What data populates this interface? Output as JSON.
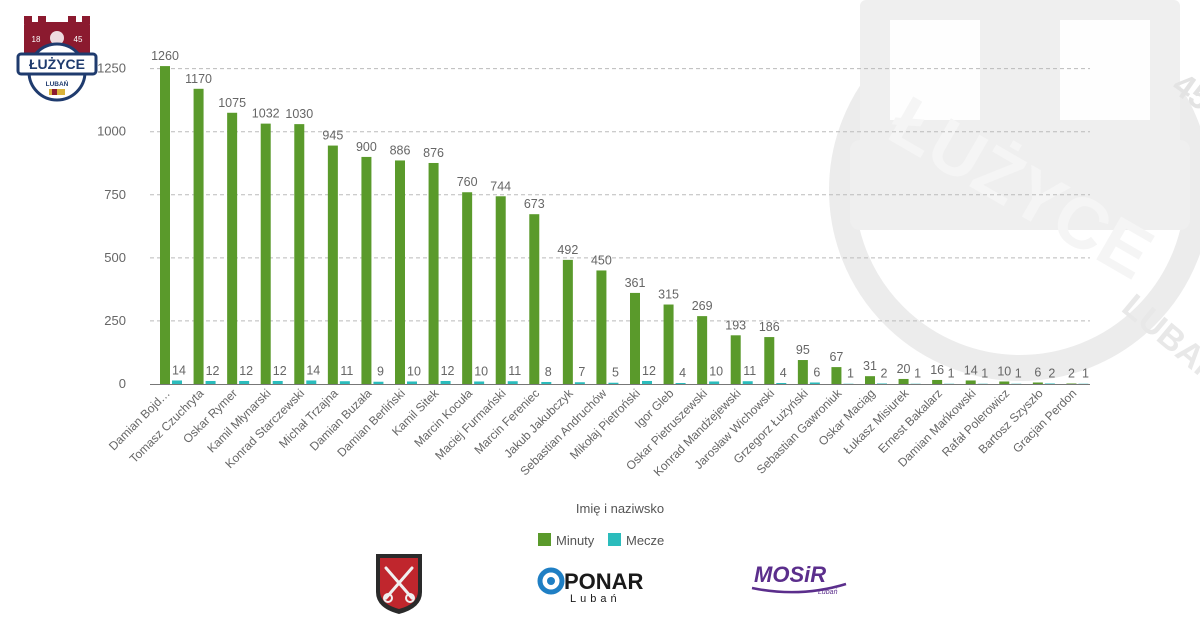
{
  "club": {
    "name": "ŁUŻYCE",
    "city": "LUBAŃ",
    "year_left": "18",
    "year_right": "45"
  },
  "colors": {
    "minuty": "#5a9a2b",
    "mecze": "#2bbcbc",
    "grid": "#bbbbbb",
    "axis": "#777777"
  },
  "chart_data": {
    "type": "bar",
    "xlabel": "Imię i naziwsko",
    "ylabel": "",
    "ylim": [
      0,
      1300
    ],
    "yticks": [
      0,
      250,
      500,
      750,
      1000,
      1250
    ],
    "grid": true,
    "legend_position": "bottom-center",
    "categories": [
      "Damian Bojd…",
      "Tomasz Czuchryta",
      "Oskar Rymer",
      "Kamil Młynarski",
      "Konrad Starczewski",
      "Michał Trzajna",
      "Damian Buzała",
      "Damian Berliński",
      "Kamil Sitek",
      "Marcin Kocuła",
      "Maciej Furmański",
      "Marcin Fereniec",
      "Jakub Jakubczyk",
      "Sebastian Andruchów",
      "Mikołaj Pietroński",
      "Igor Gleb",
      "Oskar Pietruszewski",
      "Konrad Mandżejewski",
      "Jarosław Wichowski",
      "Grzegorz Łużyński",
      "Sebastian Gawroniuk",
      "Oskar Maciąg",
      "Łukasz Misiurek",
      "Ernest Bakalarz",
      "Damian Mańkowski",
      "Rafał Polerowicz",
      "Bartosz Szyszło",
      "Gracjan Perdon"
    ],
    "series": [
      {
        "name": "Minuty",
        "values": [
          1260,
          1170,
          1075,
          1032,
          1030,
          945,
          900,
          886,
          876,
          760,
          744,
          673,
          492,
          450,
          361,
          315,
          269,
          193,
          186,
          95,
          67,
          31,
          20,
          16,
          14,
          10,
          6,
          2
        ]
      },
      {
        "name": "Mecze",
        "values": [
          14,
          12,
          12,
          12,
          14,
          11,
          9,
          10,
          12,
          10,
          11,
          8,
          7,
          5,
          12,
          4,
          10,
          11,
          4,
          6,
          1,
          2,
          1,
          1,
          1,
          1,
          2,
          1
        ]
      }
    ]
  },
  "sponsors": {
    "mosir_main": "MOSiR",
    "mosir_sub": "Lubań",
    "ponar_main": "PONAR",
    "ponar_sub": "Lubań"
  }
}
